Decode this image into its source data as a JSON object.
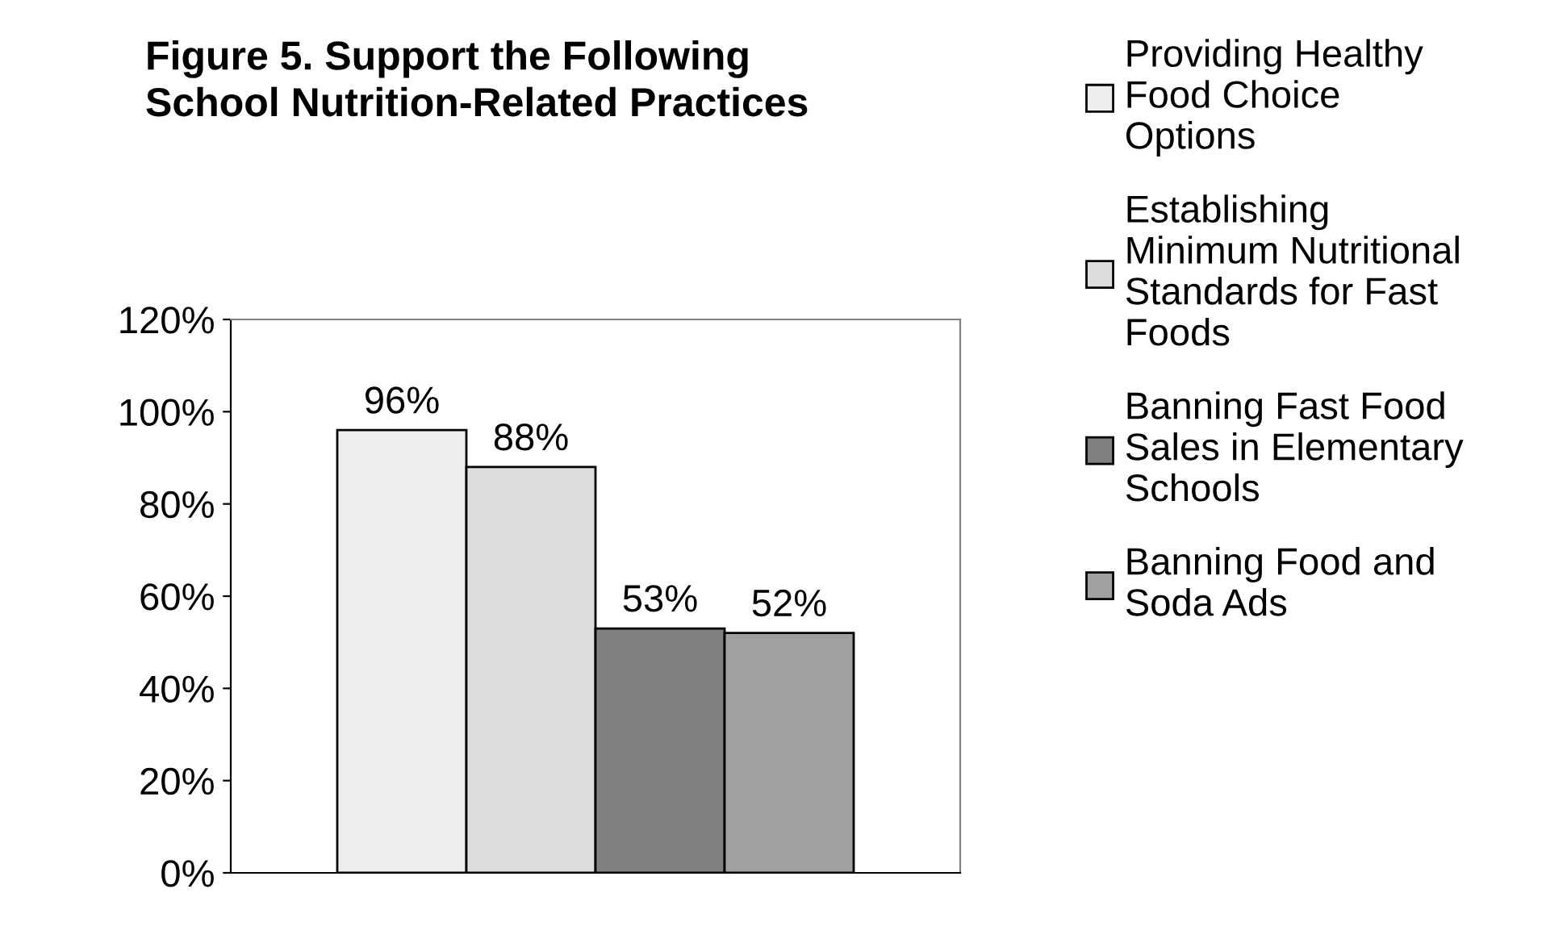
{
  "chart_data": {
    "type": "bar",
    "title": "Figure 5. Support the Following\nSchool Nutrition-Related Practices",
    "categories": [
      null
    ],
    "series": [
      {
        "name": "Providing Healthy\nFood Choice\nOptions",
        "color": "#eeeeee",
        "values": [
          96
        ]
      },
      {
        "name": "Establishing\nMinimum Nutritional\nStandards for Fast\nFoods",
        "color": "#dddddd",
        "values": [
          88
        ]
      },
      {
        "name": "Banning Fast Food\nSales in Elementary\nSchools",
        "color": "#808080",
        "values": [
          53
        ]
      },
      {
        "name": "Banning Food and\nSoda Ads",
        "color": "#a0a0a0",
        "values": [
          52
        ]
      }
    ],
    "ylim": [
      0,
      120
    ],
    "yticks": [
      {
        "value": 0,
        "label": "0%"
      },
      {
        "value": 20,
        "label": "20%"
      },
      {
        "value": 40,
        "label": "40%"
      },
      {
        "value": 60,
        "label": "60%"
      },
      {
        "value": 80,
        "label": "80%"
      },
      {
        "value": 100,
        "label": "100%"
      },
      {
        "value": 120,
        "label": "120%"
      }
    ],
    "value_labels": [
      "96%",
      "88%",
      "53%",
      "52%"
    ],
    "legend": "right",
    "grid": false
  }
}
